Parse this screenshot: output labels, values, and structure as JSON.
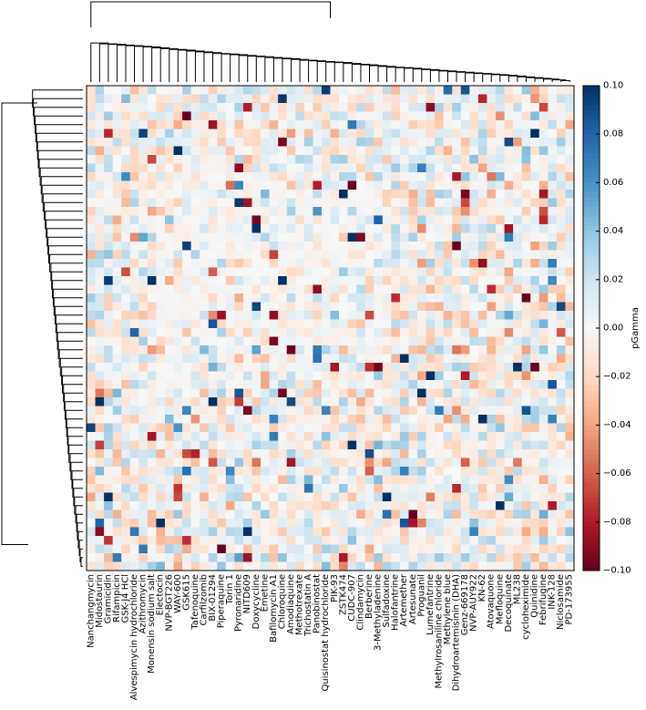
{
  "chart_data": {
    "type": "heatmap",
    "title": "",
    "xlabel": "",
    "ylabel": "",
    "x_labels": [
      "Nanchangmycin",
      "Midostaurin",
      "Gramicidin",
      "Rifampicin",
      "GSK-J4 HCl",
      "Alvespimycin hydrochloride",
      "Azithromycin",
      "Monensin sodium salt",
      "Electocin",
      "NVP-BGT226",
      "WAY-600",
      "GSK615",
      "Tafenoquine",
      "Carfilzomib",
      "BIX-01294",
      "Piperaquine",
      "Torin 1",
      "Pyronaridine",
      "NITD609",
      "Doxycycline",
      "Emetine",
      "Bafilomycin A1",
      "Chloroquine",
      "Amodiaquine",
      "Methotrexate",
      "Trichostatin A",
      "Panobinostat",
      "Quisinostat hydrochloride",
      "PIK-93",
      "ZSTK474",
      "CUDC-907",
      "Clindamycin",
      "Berberine",
      "3-Methyladenine",
      "Sulfadoxine",
      "Halofantrine",
      "Artemether",
      "Artesunate",
      "Proguanil",
      "Lumefantrine",
      "Methylrosaniline chloride",
      "Methylene blue",
      "Dihydroartemisinin (DHA)",
      "Genz-669178",
      "NVP-AUY922",
      "KN-62",
      "Atovaquone",
      "Mefloquine",
      "Decoquinate",
      "ML238",
      "cycloheximide",
      "Quinidine",
      "Febrifugine",
      "INK-128",
      "Niclosamide",
      "PD-173955"
    ],
    "n_rows": 56,
    "colorbar": {
      "label": "pGamma",
      "ticks": [
        "0.10",
        "0.08",
        "0.06",
        "0.04",
        "0.02",
        "0.00",
        "−0.02",
        "−0.04",
        "−0.06",
        "−0.08",
        "−0.10"
      ],
      "vmin": -0.1,
      "vmax": 0.1,
      "colormap": "RdBu"
    },
    "dendrograms": {
      "top": true,
      "left": true
    },
    "notes_visible": [],
    "seed": 17
  }
}
